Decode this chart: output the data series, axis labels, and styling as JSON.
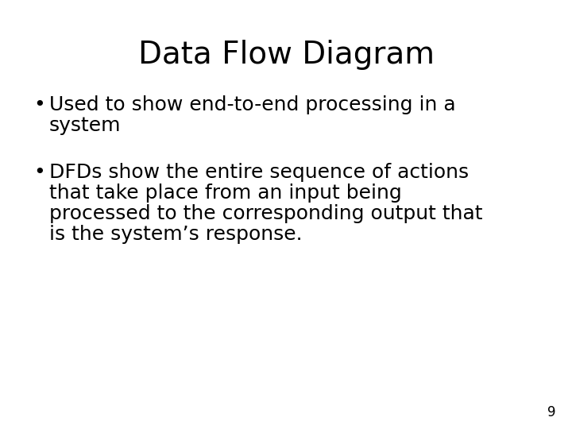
{
  "title": "Data Flow Diagram",
  "title_fontsize": 28,
  "title_color": "#000000",
  "background_color": "#ffffff",
  "bullet1_line1": "Used to show end-to-end processing in a",
  "bullet1_line2": "system",
  "bullet2_line1": "DFDs show the entire sequence of actions",
  "bullet2_line2": "that take place from an input being",
  "bullet2_line3": "processed to the corresponding output that",
  "bullet2_line4": "is the system’s response.",
  "bullet_fontsize": 18,
  "bullet_color": "#000000",
  "page_number": "9",
  "page_number_fontsize": 12,
  "bullet_symbol": "•",
  "font_family": "DejaVu Sans"
}
